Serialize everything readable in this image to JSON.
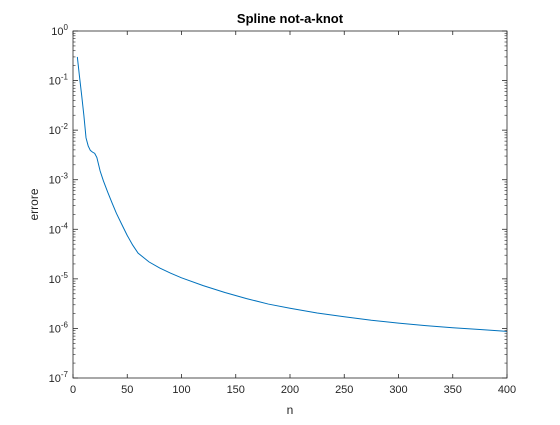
{
  "chart_data": {
    "type": "line",
    "title": "Spline not-a-knot",
    "xlabel": "n",
    "ylabel": "errore",
    "xlim": [
      0,
      400
    ],
    "ylim": [
      1e-07,
      1
    ],
    "yscale": "log",
    "grid": false,
    "box": true,
    "xticks": [
      0,
      50,
      100,
      150,
      200,
      250,
      300,
      350,
      400
    ],
    "xtick_labels": [
      "0",
      "50",
      "100",
      "150",
      "200",
      "250",
      "300",
      "350",
      "400"
    ],
    "ytick_exponents": [
      -7,
      -6,
      -5,
      -4,
      -3,
      -2,
      -1,
      0
    ],
    "ytick_base": "10",
    "ytick_labels": [
      "10-7",
      "10-6",
      "10-5",
      "10-4",
      "10-3",
      "10-2",
      "10-1",
      "100"
    ],
    "series": [
      {
        "color": "#0072BD",
        "x": [
          4,
          6,
          8,
          10,
          12,
          14,
          16,
          18,
          20,
          22,
          25,
          28,
          32,
          36,
          40,
          45,
          50,
          55,
          60,
          65,
          70,
          80,
          90,
          100,
          120,
          140,
          160,
          180,
          200,
          225,
          250,
          275,
          300,
          325,
          350,
          375,
          400
        ],
        "y": [
          0.3,
          0.12,
          0.05,
          0.02,
          0.007,
          0.0048,
          0.0039,
          0.0036,
          0.0034,
          0.0028,
          0.0015,
          0.00095,
          0.00056,
          0.00034,
          0.00021,
          0.000125,
          7.5e-05,
          4.8e-05,
          3.3e-05,
          2.7e-05,
          2.2e-05,
          1.65e-05,
          1.3e-05,
          1.05e-05,
          7.3e-06,
          5.3e-06,
          4e-06,
          3.1e-06,
          2.55e-06,
          2.05e-06,
          1.72e-06,
          1.46e-06,
          1.28e-06,
          1.14e-06,
          1.03e-06,
          9.5e-07,
          8.7e-07
        ]
      }
    ]
  }
}
